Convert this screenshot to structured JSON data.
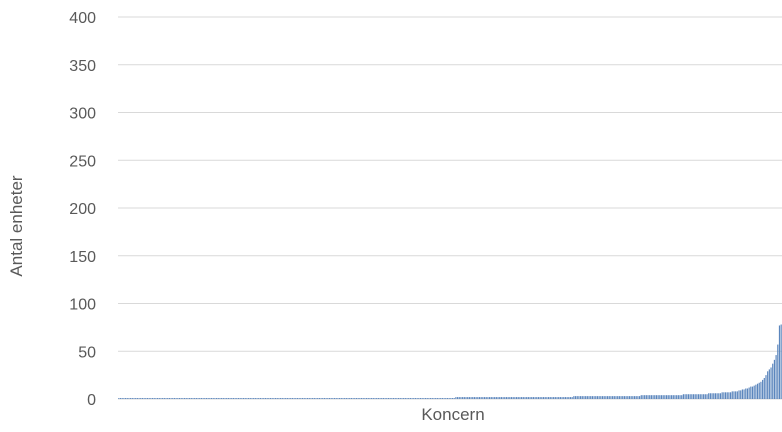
{
  "chart_data": {
    "type": "bar",
    "xlabel": "Koncern",
    "ylabel": "Antal enheter",
    "ylim": [
      0,
      400
    ],
    "yticks": [
      0,
      50,
      100,
      150,
      200,
      250,
      300,
      350,
      400
    ],
    "grid": true,
    "bar_color": "#5b86bd",
    "gridline_color": "#d9d9d9",
    "text_color": "#595959",
    "values": [
      1,
      1,
      1,
      1,
      1,
      1,
      1,
      1,
      1,
      1,
      1,
      1,
      1,
      1,
      1,
      1,
      1,
      1,
      1,
      1,
      1,
      1,
      1,
      1,
      1,
      1,
      1,
      1,
      1,
      1,
      1,
      1,
      1,
      1,
      1,
      1,
      1,
      1,
      1,
      1,
      1,
      1,
      1,
      1,
      1,
      1,
      1,
      1,
      1,
      1,
      1,
      1,
      1,
      1,
      1,
      1,
      1,
      1,
      1,
      1,
      1,
      1,
      1,
      1,
      1,
      1,
      1,
      1,
      1,
      1,
      1,
      1,
      1,
      1,
      1,
      1,
      1,
      1,
      1,
      1,
      1,
      1,
      1,
      1,
      1,
      1,
      1,
      1,
      1,
      1,
      1,
      1,
      1,
      1,
      1,
      1,
      1,
      1,
      1,
      1,
      1,
      1,
      1,
      1,
      1,
      1,
      1,
      1,
      1,
      1,
      1,
      1,
      1,
      1,
      1,
      1,
      1,
      1,
      1,
      1,
      1,
      1,
      1,
      1,
      1,
      1,
      1,
      1,
      1,
      1,
      1,
      1,
      1,
      1,
      1,
      1,
      1,
      1,
      1,
      1,
      1,
      1,
      1,
      1,
      1,
      1,
      1,
      1,
      1,
      1,
      1,
      1,
      1,
      1,
      1,
      1,
      1,
      1,
      1,
      1,
      1,
      1,
      1,
      1,
      1,
      1,
      1,
      1,
      1,
      1,
      1,
      1,
      1,
      1,
      1,
      1,
      1,
      1,
      1,
      1,
      1,
      1,
      1,
      1,
      1,
      1,
      1,
      1,
      1,
      1,
      1,
      1,
      1,
      1,
      1,
      1,
      1,
      1,
      1,
      1,
      2,
      2,
      2,
      2,
      2,
      2,
      2,
      2,
      2,
      2,
      2,
      2,
      2,
      2,
      2,
      2,
      2,
      2,
      2,
      2,
      2,
      2,
      2,
      2,
      2,
      2,
      2,
      2,
      2,
      2,
      2,
      2,
      2,
      2,
      2,
      2,
      2,
      2,
      2,
      2,
      2,
      2,
      2,
      2,
      2,
      2,
      2,
      2,
      2,
      2,
      2,
      2,
      2,
      2,
      2,
      2,
      2,
      2,
      2,
      2,
      2,
      2,
      2,
      2,
      2,
      2,
      2,
      2,
      2,
      2,
      3,
      3,
      3,
      3,
      3,
      3,
      3,
      3,
      3,
      3,
      3,
      3,
      3,
      3,
      3,
      3,
      3,
      3,
      3,
      3,
      3,
      3,
      3,
      3,
      3,
      3,
      3,
      3,
      3,
      3,
      3,
      3,
      3,
      3,
      3,
      3,
      3,
      3,
      3,
      3,
      4,
      4,
      4,
      4,
      4,
      4,
      4,
      4,
      4,
      4,
      4,
      4,
      4,
      4,
      4,
      4,
      4,
      4,
      4,
      4,
      4,
      4,
      4,
      4,
      4,
      5,
      5,
      5,
      5,
      5,
      5,
      5,
      5,
      5,
      5,
      5,
      5,
      5,
      5,
      5,
      6,
      6,
      6,
      6,
      6,
      6,
      6,
      6,
      7,
      7,
      7,
      7,
      7,
      7,
      8,
      8,
      8,
      8,
      9,
      9,
      10,
      10,
      11,
      11,
      12,
      13,
      13,
      14,
      15,
      16,
      17,
      18,
      20,
      22,
      25,
      29,
      31,
      33,
      37,
      41,
      46,
      57,
      77,
      78
    ]
  }
}
